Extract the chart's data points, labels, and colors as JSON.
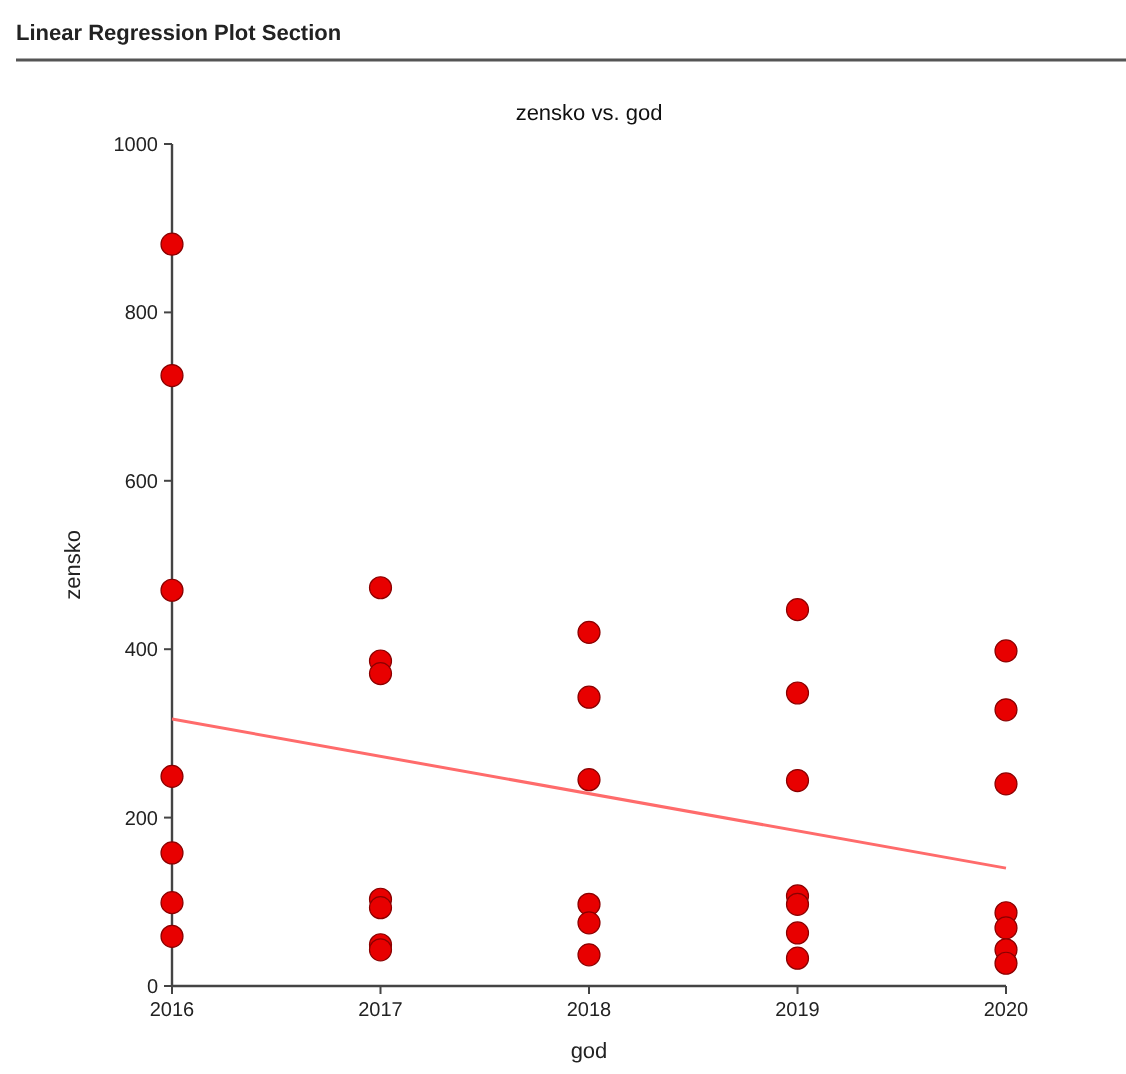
{
  "chart_data": {
    "type": "scatter",
    "title": "Linear Regression Plot Section",
    "subtitle": "zensko vs. god",
    "xlabel": "god",
    "ylabel": "zensko",
    "xlim": [
      2016,
      2020
    ],
    "xticks": [
      2016,
      2017,
      2018,
      2019,
      2020
    ],
    "ylim": [
      0,
      1000
    ],
    "yticks": [
      0,
      200,
      400,
      600,
      800,
      1000
    ],
    "grid": false,
    "marker": "circle",
    "series": [
      {
        "color": "#e80000",
        "x": [
          2016,
          2016,
          2016,
          2016,
          2016,
          2016,
          2016,
          2017,
          2017,
          2017,
          2017,
          2017,
          2017,
          2017,
          2018,
          2018,
          2018,
          2018,
          2018,
          2018,
          2019,
          2019,
          2019,
          2019,
          2019,
          2019,
          2019,
          2020,
          2020,
          2020,
          2020,
          2020,
          2020,
          2020
        ],
        "values": [
          881,
          725,
          470,
          249,
          158,
          99,
          59,
          473,
          386,
          371,
          103,
          93,
          49,
          43,
          420,
          343,
          245,
          97,
          75,
          37,
          447,
          348,
          244,
          107,
          97,
          63,
          33,
          398,
          328,
          240,
          87,
          69,
          43,
          27
        ]
      },
      {
        "type": "line",
        "color": "#ff6b6b",
        "x": [
          2016,
          2020
        ],
        "values": [
          317,
          140
        ],
        "marker": "none"
      }
    ]
  }
}
